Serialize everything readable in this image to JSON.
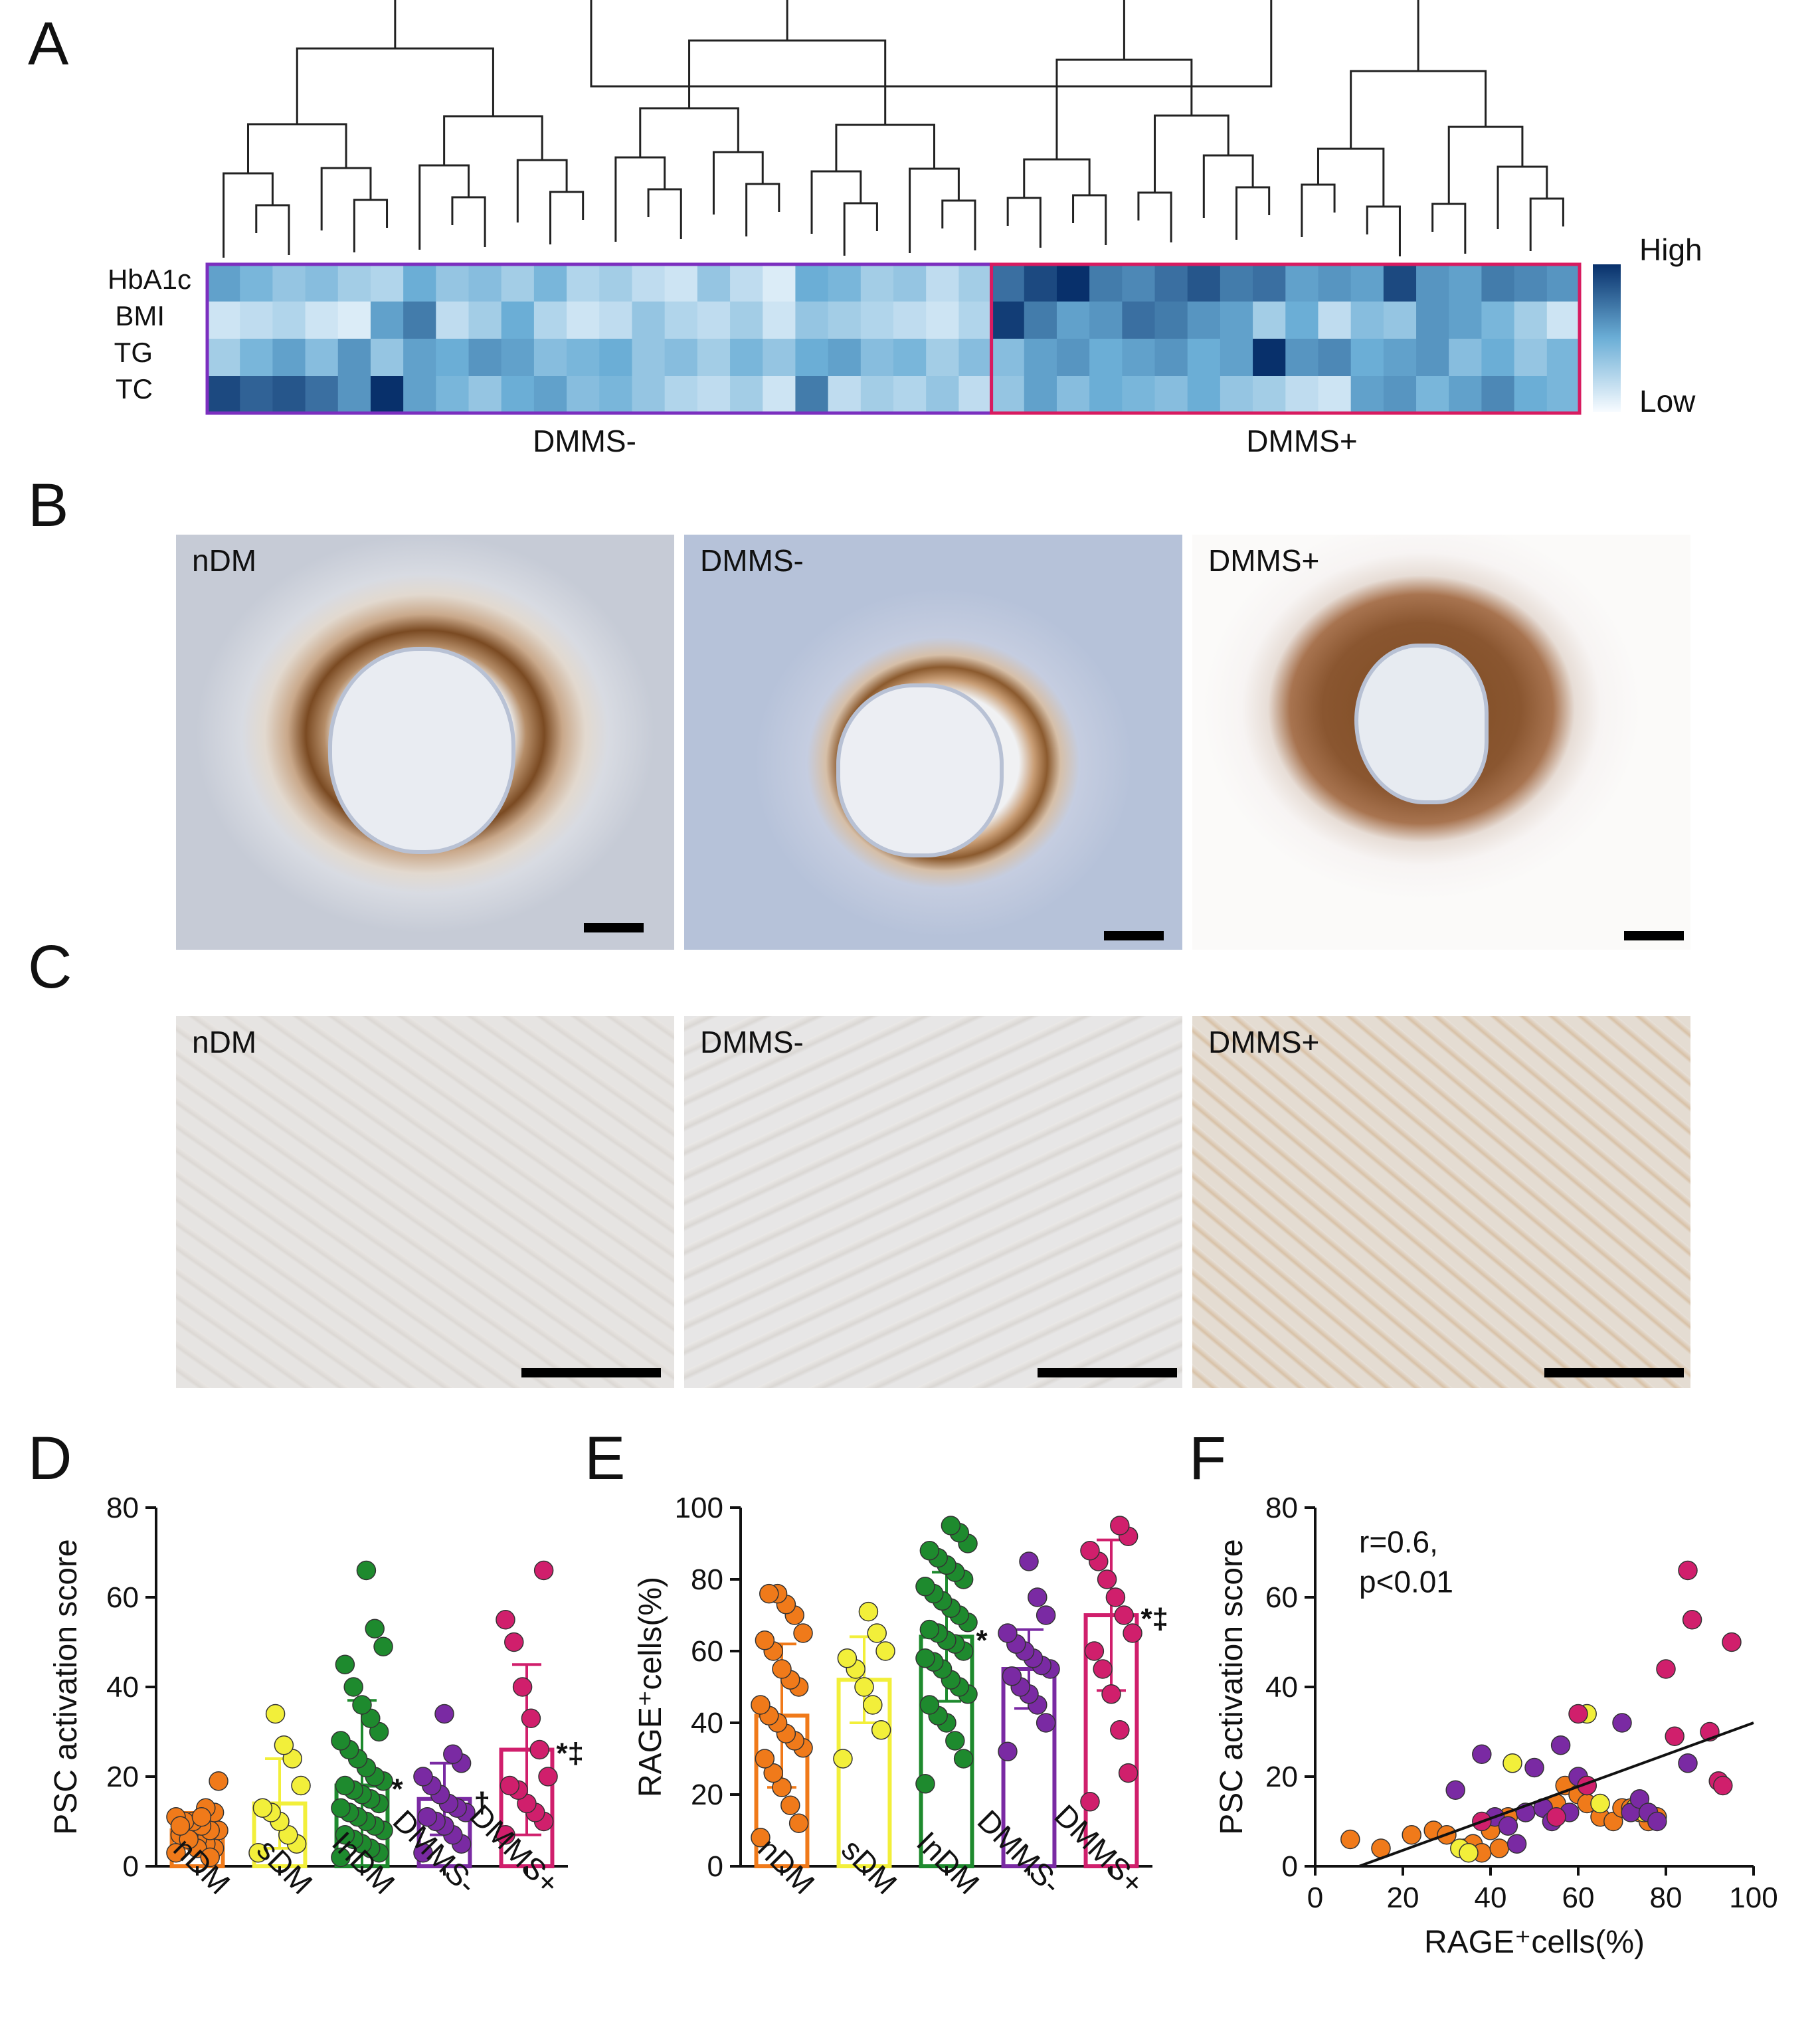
{
  "panels": {
    "A": "A",
    "B": "B",
    "C": "C",
    "D": "D",
    "E": "E",
    "F": "F"
  },
  "heatmap": {
    "rows": [
      "HbA1c",
      "BMI",
      "TG",
      "TC"
    ],
    "legend_high": "High",
    "legend_low": "Low",
    "groups": [
      "DMMS-",
      "DMMS+"
    ],
    "colors": {
      "dmms_minus_border": "#7b2fbf",
      "dmms_plus_border": "#d81b60",
      "high": "#08306b",
      "low": "#f7fbff"
    },
    "n_minus": 24,
    "n_plus": 18,
    "intensity": [
      [
        0.55,
        0.45,
        0.35,
        0.4,
        0.3,
        0.25,
        0.5,
        0.35,
        0.4,
        0.3,
        0.45,
        0.25,
        0.3,
        0.2,
        0.15,
        0.35,
        0.2,
        0.1,
        0.5,
        0.45,
        0.3,
        0.35,
        0.2,
        0.3,
        0.75,
        0.9,
        1.0,
        0.7,
        0.65,
        0.75,
        0.85,
        0.7,
        0.75,
        0.55,
        0.6,
        0.55,
        0.9,
        0.6,
        0.55,
        0.7,
        0.65,
        0.6
      ],
      [
        0.15,
        0.2,
        0.25,
        0.15,
        0.1,
        0.55,
        0.7,
        0.2,
        0.3,
        0.5,
        0.25,
        0.15,
        0.2,
        0.35,
        0.25,
        0.2,
        0.3,
        0.15,
        0.35,
        0.3,
        0.25,
        0.2,
        0.15,
        0.25,
        0.95,
        0.7,
        0.55,
        0.6,
        0.75,
        0.7,
        0.6,
        0.55,
        0.3,
        0.5,
        0.2,
        0.4,
        0.35,
        0.6,
        0.55,
        0.45,
        0.3,
        0.15
      ],
      [
        0.3,
        0.45,
        0.55,
        0.4,
        0.6,
        0.35,
        0.55,
        0.5,
        0.6,
        0.55,
        0.4,
        0.45,
        0.5,
        0.35,
        0.4,
        0.3,
        0.45,
        0.35,
        0.5,
        0.55,
        0.4,
        0.45,
        0.3,
        0.4,
        0.4,
        0.55,
        0.6,
        0.5,
        0.55,
        0.6,
        0.5,
        0.55,
        1.0,
        0.6,
        0.65,
        0.5,
        0.55,
        0.6,
        0.4,
        0.5,
        0.35,
        0.45
      ],
      [
        0.9,
        0.8,
        0.85,
        0.75,
        0.6,
        1.0,
        0.55,
        0.45,
        0.35,
        0.5,
        0.55,
        0.4,
        0.45,
        0.35,
        0.25,
        0.2,
        0.3,
        0.15,
        0.7,
        0.2,
        0.3,
        0.25,
        0.35,
        0.2,
        0.35,
        0.55,
        0.4,
        0.5,
        0.45,
        0.4,
        0.5,
        0.35,
        0.3,
        0.2,
        0.15,
        0.55,
        0.6,
        0.45,
        0.55,
        0.65,
        0.5,
        0.45
      ]
    ]
  },
  "micrographs": {
    "B": [
      "nDM",
      "DMMS-",
      "DMMS+"
    ],
    "C": [
      "nDM",
      "DMMS-",
      "DMMS+"
    ]
  },
  "chart_data": [
    {
      "panel": "D",
      "type": "bar",
      "categories": [
        "nDM",
        "sDM",
        "InDM",
        "DMMS-",
        "DMMS+"
      ],
      "ylabel": "PSC activation score",
      "ylim": [
        0,
        80
      ],
      "yticks": [
        "0",
        "20",
        "40",
        "60",
        "80"
      ],
      "values": [
        8,
        14,
        18,
        15,
        26
      ],
      "sd": [
        4,
        10,
        19,
        8,
        19
      ],
      "annotations": [
        "",
        "",
        "*",
        "†",
        "*‡"
      ],
      "colors": [
        "#f07a1a",
        "#f2ef3a",
        "#1e8a2e",
        "#7a2aa3",
        "#d01f6c"
      ],
      "points": [
        [
          3,
          4,
          5,
          6,
          7,
          7,
          8,
          8,
          9,
          10,
          10,
          11,
          12,
          13,
          4,
          6,
          9,
          19,
          2,
          11
        ],
        [
          3,
          5,
          7,
          10,
          12,
          13,
          18,
          24,
          27,
          34
        ],
        [
          2,
          3,
          4,
          5,
          6,
          7,
          8,
          9,
          10,
          11,
          12,
          13,
          14,
          15,
          16,
          17,
          18,
          19,
          20,
          22,
          24,
          26,
          28,
          30,
          33,
          36,
          40,
          45,
          49,
          53,
          66
        ],
        [
          3,
          5,
          7,
          9,
          10,
          11,
          12,
          13,
          14,
          16,
          18,
          20,
          23,
          25,
          34
        ],
        [
          7,
          10,
          12,
          14,
          17,
          18,
          20,
          26,
          33,
          40,
          50,
          55,
          66
        ]
      ]
    },
    {
      "panel": "E",
      "type": "bar",
      "categories": [
        "nDM",
        "sDM",
        "InDM",
        "DMMS-",
        "DMMS+"
      ],
      "ylabel": "RAGE⁺cells(%)",
      "ylim": [
        0,
        100
      ],
      "yticks": [
        "0",
        "20",
        "40",
        "60",
        "80",
        "100"
      ],
      "values": [
        42,
        52,
        64,
        55,
        70
      ],
      "sd": [
        20,
        12,
        18,
        11,
        21
      ],
      "annotations": [
        "",
        "",
        "*",
        "",
        "*‡"
      ],
      "colors": [
        "#f07a1a",
        "#f2ef3a",
        "#1e8a2e",
        "#7a2aa3",
        "#d01f6c"
      ],
      "points": [
        [
          8,
          12,
          17,
          22,
          26,
          30,
          33,
          35,
          37,
          40,
          42,
          45,
          50,
          52,
          55,
          60,
          63,
          65,
          70,
          73,
          76,
          76
        ],
        [
          30,
          38,
          45,
          50,
          55,
          58,
          60,
          65,
          71
        ],
        [
          23,
          30,
          35,
          40,
          42,
          45,
          48,
          50,
          52,
          55,
          57,
          58,
          60,
          62,
          63,
          65,
          66,
          68,
          70,
          72,
          74,
          76,
          78,
          80,
          82,
          84,
          86,
          88,
          90,
          93,
          95
        ],
        [
          32,
          40,
          45,
          48,
          50,
          53,
          55,
          56,
          58,
          60,
          62,
          65,
          70,
          75,
          85
        ],
        [
          18,
          26,
          38,
          48,
          55,
          60,
          65,
          70,
          75,
          80,
          85,
          88,
          92,
          95
        ]
      ]
    },
    {
      "panel": "F",
      "type": "scatter",
      "xlabel": "RAGE⁺cells(%)",
      "ylabel": "PSC activation score",
      "xlim": [
        0,
        100
      ],
      "ylim": [
        0,
        80
      ],
      "xticks": [
        "0",
        "20",
        "40",
        "60",
        "80",
        "100"
      ],
      "yticks": [
        "0",
        "20",
        "40",
        "60",
        "80"
      ],
      "annotation": [
        "r=0.6,",
        "p<0.01"
      ],
      "fit": {
        "x": [
          10,
          100
        ],
        "y": [
          0,
          32
        ]
      },
      "series": [
        {
          "color": "#f07a1a",
          "x": [
            8,
            15,
            22,
            27,
            30,
            34,
            36,
            38,
            40,
            42,
            44,
            48,
            52,
            55,
            57,
            60,
            62,
            65,
            68,
            70,
            72,
            74,
            76,
            78
          ],
          "y": [
            6,
            4,
            7,
            8,
            7,
            4,
            5,
            3,
            8,
            4,
            11,
            12,
            13,
            14,
            18,
            16,
            14,
            11,
            10,
            13,
            13,
            12,
            10,
            11
          ]
        },
        {
          "color": "#f2ef3a",
          "x": [
            33,
            35,
            45,
            62,
            65,
            73,
            75
          ],
          "y": [
            4,
            3,
            23,
            34,
            14,
            13,
            12
          ]
        },
        {
          "color": "#7a2aa3",
          "x": [
            32,
            38,
            41,
            44,
            46,
            48,
            50,
            52,
            54,
            56,
            58,
            60,
            62,
            70,
            72,
            74,
            76,
            78,
            85
          ],
          "y": [
            17,
            25,
            11,
            9,
            5,
            12,
            22,
            13,
            10,
            27,
            12,
            20,
            18,
            32,
            12,
            15,
            12,
            10,
            23
          ]
        },
        {
          "color": "#d01f6c",
          "x": [
            38,
            55,
            60,
            62,
            80,
            82,
            85,
            86,
            90,
            92,
            93,
            95
          ],
          "y": [
            10,
            11,
            34,
            18,
            44,
            29,
            66,
            55,
            30,
            19,
            18,
            50
          ]
        }
      ]
    }
  ]
}
